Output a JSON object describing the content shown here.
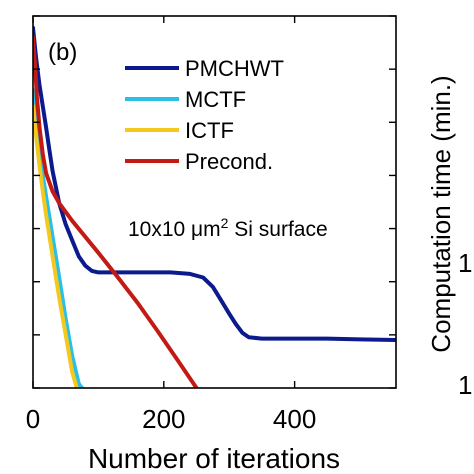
{
  "chart_data": {
    "type": "line",
    "panel_label": "(b)",
    "title": "",
    "xlabel": "Number of iterations",
    "ylabel_right": "Computation time (min.)",
    "xlim": [
      0,
      555
    ],
    "xticks": [
      0,
      200,
      400
    ],
    "xtick_labels": [
      "0",
      "200",
      "400"
    ],
    "yscale": "log",
    "ylim": [
      1e-06,
      10
    ],
    "annotation": {
      "text": "10x10 μm",
      "sup": "2",
      "tail": " Si surface"
    },
    "right_axis_partial_labels": [
      "1",
      "1"
    ],
    "legend_position": "top-right",
    "series": [
      {
        "name": "PMCHWT",
        "color": "#0b1a8c",
        "x": [
          0,
          5,
          10,
          15,
          20,
          25,
          30,
          40,
          50,
          60,
          70,
          80,
          90,
          100,
          120,
          150,
          180,
          210,
          240,
          260,
          275,
          290,
          300,
          310,
          320,
          330,
          350,
          400,
          450,
          500,
          555
        ],
        "y": [
          6,
          1.5,
          0.5,
          0.2,
          0.08,
          0.03,
          0.012,
          0.003,
          0.0012,
          0.0006,
          0.0003,
          0.0002,
          0.00016,
          0.00015,
          0.00015,
          0.00015,
          0.00015,
          0.00015,
          0.00014,
          0.00012,
          8e-05,
          4e-05,
          2.5e-05,
          1.6e-05,
          1.1e-05,
          9e-06,
          8.5e-06,
          8.5e-06,
          8.5e-06,
          8.2e-06,
          8e-06
        ]
      },
      {
        "name": "MCTF",
        "color": "#29c0e8",
        "x": [
          0,
          5,
          10,
          15,
          20,
          30,
          40,
          50,
          60,
          70,
          75
        ],
        "y": [
          0.4,
          0.1,
          0.03,
          0.01,
          0.004,
          0.0007,
          0.00012,
          2e-05,
          4e-06,
          1.2e-06,
          1e-06
        ]
      },
      {
        "name": "ICTF",
        "color": "#f4c81c",
        "x": [
          0,
          5,
          10,
          15,
          20,
          30,
          40,
          50,
          60,
          67
        ],
        "y": [
          0.2,
          0.05,
          0.015,
          0.005,
          0.0018,
          0.0003,
          5e-05,
          1e-05,
          2e-06,
          1e-06
        ]
      },
      {
        "name": "Precond.",
        "color": "#c41a14",
        "x": [
          0,
          3,
          6,
          10,
          15,
          20,
          30,
          40,
          60,
          80,
          100,
          130,
          160,
          190,
          220,
          250
        ],
        "y": [
          4,
          1.2,
          0.3,
          0.08,
          0.025,
          0.011,
          0.005,
          0.003,
          0.0014,
          0.0007,
          0.00035,
          0.00012,
          4e-05,
          1.2e-05,
          3.5e-06,
          1e-06
        ]
      }
    ]
  }
}
